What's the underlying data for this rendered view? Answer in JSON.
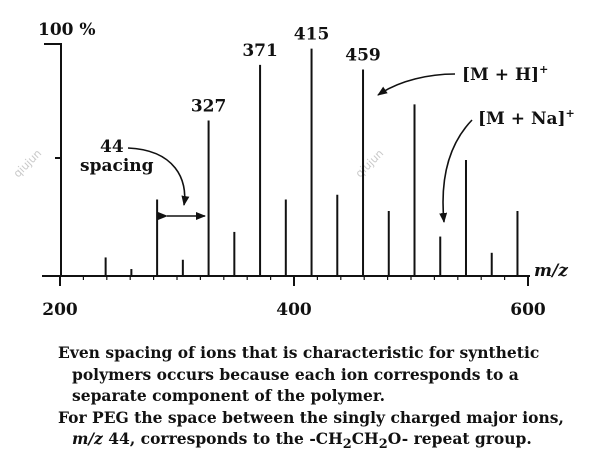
{
  "chart_data": {
    "type": "bar",
    "ylabel_top": "100 %",
    "xlabel": "m/z",
    "xlim": [
      200,
      600
    ],
    "xticks": [
      200,
      400,
      600
    ],
    "ylim": [
      0,
      100
    ],
    "peaks": [
      {
        "mz": 239,
        "intensity": 8
      },
      {
        "mz": 261,
        "intensity": 3
      },
      {
        "mz": 283,
        "intensity": 33
      },
      {
        "mz": 305,
        "intensity": 7
      },
      {
        "mz": 327,
        "intensity": 67,
        "label": "327"
      },
      {
        "mz": 349,
        "intensity": 19
      },
      {
        "mz": 371,
        "intensity": 91,
        "label": "371"
      },
      {
        "mz": 393,
        "intensity": 33
      },
      {
        "mz": 415,
        "intensity": 98,
        "label": "415"
      },
      {
        "mz": 437,
        "intensity": 35
      },
      {
        "mz": 459,
        "intensity": 89,
        "label": "459"
      },
      {
        "mz": 481,
        "intensity": 28
      },
      {
        "mz": 503,
        "intensity": 74
      },
      {
        "mz": 525,
        "intensity": 17
      },
      {
        "mz": 547,
        "intensity": 50
      },
      {
        "mz": 569,
        "intensity": 10
      },
      {
        "mz": 591,
        "intensity": 28
      }
    ],
    "annotations": {
      "spacing_value": "44",
      "spacing_word": "spacing",
      "mh_base": "[M + H]",
      "mna_base": "[M + Na]",
      "ion_charge": "+"
    }
  },
  "caption": {
    "line1": "Even spacing of ions that is characteristic for synthetic",
    "line2": "polymers occurs because each ion corresponds to a",
    "line3": "separate component of the polymer.",
    "line4": "For PEG the space between the singly charged major ions,",
    "line5_mz": "m/z",
    "line5_a": " 44, corresponds to the -CH",
    "sub2a": "2",
    "line5_b": "CH",
    "sub2b": "2",
    "line5_c": "O- repeat group."
  },
  "watermark": "qiujun"
}
